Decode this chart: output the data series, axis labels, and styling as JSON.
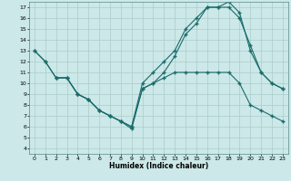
{
  "xlabel": "Humidex (Indice chaleur)",
  "bg_color": "#cce8e8",
  "grid_color": "#aacccc",
  "line_color": "#1a6b6b",
  "xlim": [
    -0.5,
    23.5
  ],
  "ylim": [
    3.5,
    17.5
  ],
  "xticks": [
    0,
    1,
    2,
    3,
    4,
    5,
    6,
    7,
    8,
    9,
    10,
    11,
    12,
    13,
    14,
    15,
    16,
    17,
    18,
    19,
    20,
    21,
    22,
    23
  ],
  "yticks": [
    4,
    5,
    6,
    7,
    8,
    9,
    10,
    11,
    12,
    13,
    14,
    15,
    16,
    17
  ],
  "line1_x": [
    0,
    1,
    2,
    3,
    4,
    5,
    6,
    7,
    8,
    9,
    10,
    11,
    12,
    13,
    14,
    15,
    16,
    17,
    18,
    19,
    20,
    21,
    22,
    23
  ],
  "line1_y": [
    13,
    12,
    10.5,
    10.5,
    9,
    8.5,
    7.5,
    7.0,
    6.5,
    6.0,
    9.5,
    10.0,
    10.5,
    11.0,
    11.0,
    11.0,
    11.0,
    11.0,
    11.0,
    10.0,
    8.0,
    7.5,
    7.0,
    6.5
  ],
  "line2_x": [
    0,
    1,
    2,
    3,
    4,
    5,
    6,
    7,
    8,
    9,
    10,
    11,
    12,
    13,
    14,
    15,
    16,
    17,
    18,
    19,
    20,
    21,
    22,
    23
  ],
  "line2_y": [
    13,
    12,
    10.5,
    10.5,
    9.0,
    8.5,
    7.5,
    7.0,
    6.5,
    6.0,
    10.0,
    11.0,
    12.0,
    13.0,
    15.0,
    16.0,
    17.0,
    17.0,
    17.0,
    16.0,
    13.5,
    11.0,
    10.0,
    9.5
  ],
  "line3_x": [
    2,
    3,
    4,
    5,
    6,
    7,
    8,
    9,
    10,
    11,
    12,
    13,
    14,
    15,
    16,
    17,
    18,
    19,
    20,
    21,
    22,
    23
  ],
  "line3_y": [
    10.5,
    10.5,
    9.0,
    8.5,
    7.5,
    7.0,
    6.5,
    5.8,
    9.5,
    10.0,
    11.0,
    12.5,
    14.5,
    15.5,
    17.0,
    17.0,
    17.5,
    16.5,
    13.0,
    11.0,
    10.0,
    9.5
  ]
}
